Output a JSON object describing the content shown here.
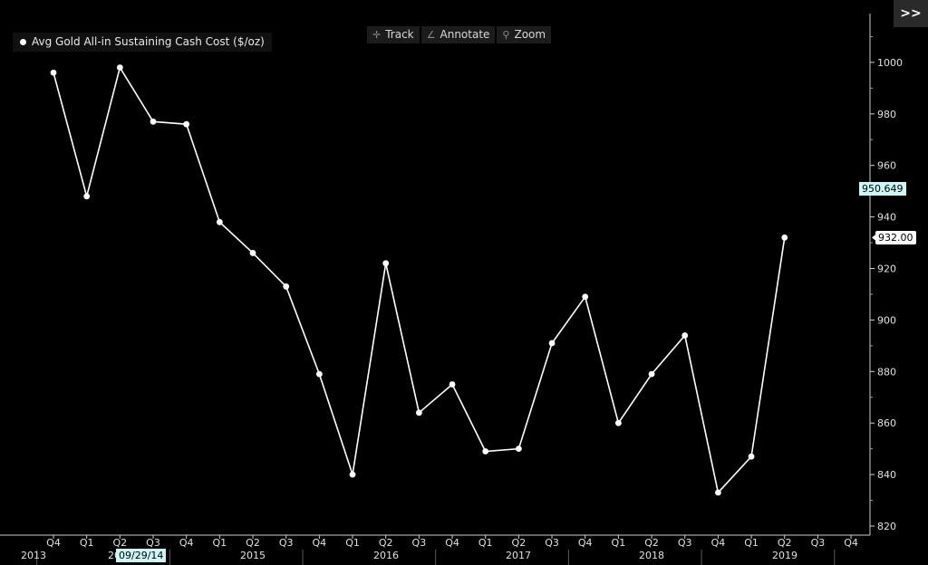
{
  "toolbar": {
    "track": "Track",
    "annotate": "Annotate",
    "zoom": "Zoom"
  },
  "legend": "Avg Gold All-in Sustaining Cash Cost ($/oz)",
  "expand_label": ">>",
  "crosshair": {
    "y_value": "950.649",
    "date": "09/29/14"
  },
  "last_value_label": "932.00",
  "chart_data": {
    "type": "line",
    "series": [
      {
        "name": "Avg Gold All-in Sustaining Cash Cost ($/oz)",
        "x": [
          "2013 Q4",
          "2014 Q1",
          "2014 Q2",
          "2014 Q3",
          "2014 Q4",
          "2015 Q1",
          "2015 Q2",
          "2015 Q3",
          "2015 Q4",
          "2016 Q1",
          "2016 Q2",
          "2016 Q3",
          "2016 Q4",
          "2017 Q1",
          "2017 Q2",
          "2017 Q3",
          "2017 Q4",
          "2018 Q1",
          "2018 Q2",
          "2018 Q3",
          "2018 Q4",
          "2019 Q1",
          "2019 Q2"
        ],
        "values": [
          996,
          948,
          998,
          977,
          976,
          938,
          926,
          913,
          879,
          840,
          922,
          864,
          875,
          849,
          850,
          891,
          909,
          860,
          879,
          894,
          833,
          847,
          932
        ]
      }
    ],
    "quarter_ticks": [
      "Q4",
      "Q1",
      "Q2",
      "Q3",
      "Q4",
      "Q1",
      "Q2",
      "Q3",
      "Q4",
      "Q1",
      "Q2",
      "Q3",
      "Q4",
      "Q1",
      "Q2",
      "Q3",
      "Q4",
      "Q1",
      "Q2",
      "Q3",
      "Q4",
      "Q1",
      "Q2",
      "Q3",
      "Q4"
    ],
    "year_labels": [
      "2013",
      "2014",
      "2015",
      "2016",
      "2017",
      "2018",
      "2019"
    ],
    "yticks": [
      820,
      840,
      860,
      880,
      900,
      920,
      940,
      960,
      980,
      1000
    ],
    "ylim": [
      816,
      1012
    ],
    "grid": false,
    "legend_position": "top-left",
    "colors": {
      "line": "#ffffff",
      "background": "#000000"
    }
  }
}
